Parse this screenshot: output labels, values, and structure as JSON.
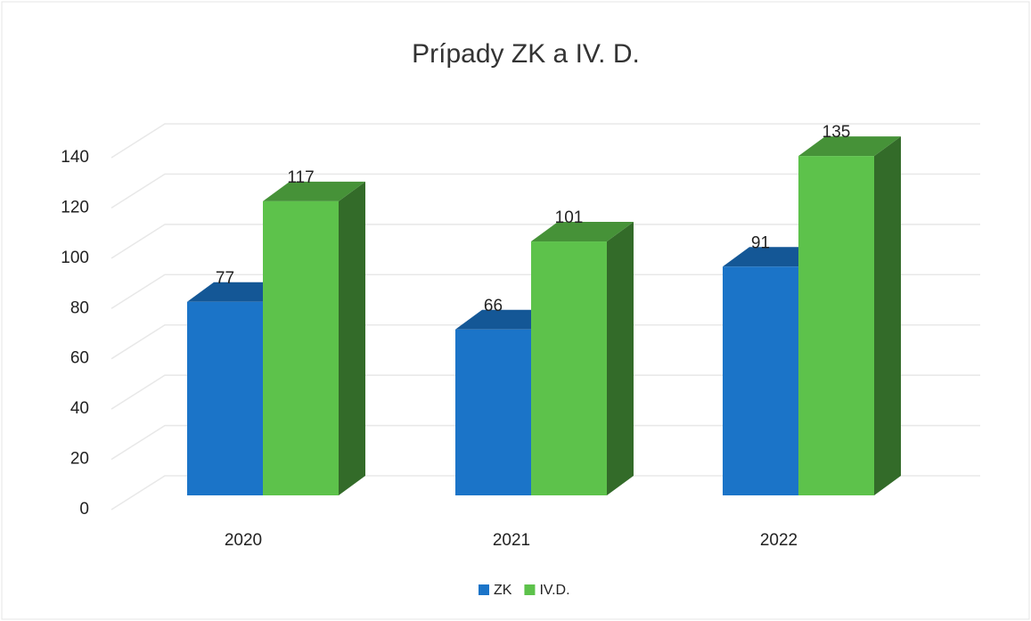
{
  "chart_data": {
    "type": "bar3d",
    "title": "Prípady ZK a IV. D.",
    "categories": [
      "2020",
      "2021",
      "2022"
    ],
    "series": [
      {
        "name": "ZK",
        "color": "#1b74c8",
        "values": [
          77,
          66,
          91
        ]
      },
      {
        "name": "IV.D.",
        "color": "#5dc24b",
        "values": [
          117,
          101,
          135
        ]
      }
    ],
    "ylim": [
      0,
      140
    ],
    "yticks": [
      0,
      20,
      40,
      60,
      80,
      100,
      120,
      140
    ],
    "grid": true,
    "legend": "bottom"
  }
}
